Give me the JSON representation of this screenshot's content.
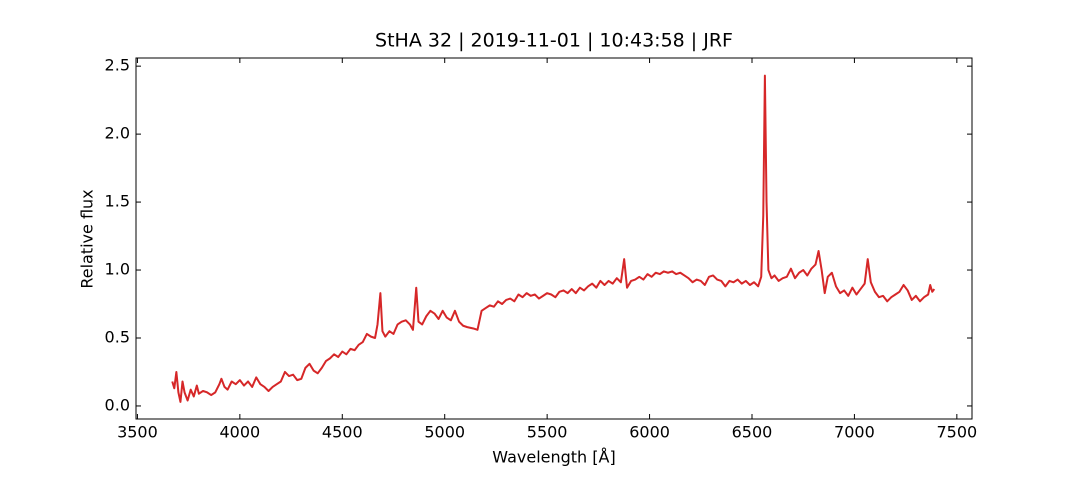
{
  "chart_data": {
    "type": "line",
    "title": "StHA 32 | 2019-11-01 | 10:43:58 | JRF",
    "x_label": "Wavelength [Å]",
    "y_label": "Relative flux",
    "xlim": [
      3493,
      7574
    ],
    "ylim": [
      -0.096,
      2.56
    ],
    "xticks": [
      3500,
      4000,
      4500,
      5000,
      5500,
      6000,
      6500,
      7000,
      7500
    ],
    "yticks": [
      {
        "value": 0,
        "label": "0.0"
      },
      0.5,
      {
        "value": 1,
        "label": "1.0"
      },
      1.5,
      {
        "value": 2,
        "label": "2.0"
      },
      2.5
    ],
    "x": [
      3670,
      3680,
      3690,
      3700,
      3710,
      3720,
      3730,
      3745,
      3760,
      3775,
      3790,
      3800,
      3820,
      3840,
      3860,
      3880,
      3900,
      3910,
      3925,
      3940,
      3960,
      3980,
      4000,
      4020,
      4040,
      4060,
      4080,
      4100,
      4120,
      4140,
      4160,
      4180,
      4200,
      4220,
      4240,
      4260,
      4280,
      4300,
      4320,
      4340,
      4360,
      4380,
      4400,
      4420,
      4440,
      4460,
      4480,
      4500,
      4520,
      4540,
      4560,
      4580,
      4600,
      4620,
      4640,
      4660,
      4672,
      4686,
      4696,
      4710,
      4730,
      4750,
      4770,
      4790,
      4810,
      4830,
      4845,
      4861,
      4872,
      4890,
      4910,
      4930,
      4950,
      4970,
      4990,
      5010,
      5030,
      5050,
      5070,
      5090,
      5110,
      5140,
      5160,
      5180,
      5200,
      5220,
      5240,
      5260,
      5280,
      5300,
      5320,
      5340,
      5360,
      5380,
      5400,
      5420,
      5440,
      5460,
      5480,
      5500,
      5520,
      5540,
      5560,
      5580,
      5600,
      5620,
      5640,
      5660,
      5680,
      5700,
      5720,
      5740,
      5760,
      5780,
      5800,
      5820,
      5840,
      5860,
      5876,
      5890,
      5910,
      5930,
      5950,
      5970,
      5990,
      6010,
      6030,
      6050,
      6070,
      6090,
      6110,
      6130,
      6150,
      6170,
      6190,
      6210,
      6230,
      6250,
      6270,
      6290,
      6310,
      6330,
      6350,
      6370,
      6390,
      6410,
      6430,
      6450,
      6470,
      6490,
      6510,
      6530,
      6545,
      6555,
      6563,
      6571,
      6580,
      6595,
      6610,
      6630,
      6650,
      6670,
      6690,
      6710,
      6730,
      6750,
      6770,
      6790,
      6810,
      6825,
      6840,
      6855,
      6870,
      6890,
      6910,
      6930,
      6950,
      6970,
      6990,
      7010,
      7030,
      7050,
      7065,
      7080,
      7100,
      7120,
      7140,
      7160,
      7180,
      7200,
      7220,
      7240,
      7260,
      7280,
      7300,
      7320,
      7340,
      7360,
      7370,
      7380,
      7390
    ],
    "series": [
      {
        "color": "#d62728",
        "values": [
          0.18,
          0.13,
          0.25,
          0.1,
          0.03,
          0.18,
          0.1,
          0.04,
          0.12,
          0.07,
          0.15,
          0.09,
          0.11,
          0.1,
          0.08,
          0.1,
          0.16,
          0.2,
          0.14,
          0.12,
          0.18,
          0.16,
          0.19,
          0.15,
          0.18,
          0.14,
          0.21,
          0.16,
          0.14,
          0.11,
          0.14,
          0.16,
          0.18,
          0.25,
          0.22,
          0.23,
          0.19,
          0.2,
          0.28,
          0.31,
          0.26,
          0.24,
          0.28,
          0.33,
          0.35,
          0.38,
          0.36,
          0.4,
          0.38,
          0.42,
          0.41,
          0.45,
          0.47,
          0.53,
          0.51,
          0.5,
          0.6,
          0.83,
          0.55,
          0.51,
          0.55,
          0.53,
          0.6,
          0.62,
          0.63,
          0.6,
          0.56,
          0.87,
          0.62,
          0.6,
          0.66,
          0.7,
          0.68,
          0.64,
          0.7,
          0.65,
          0.63,
          0.7,
          0.62,
          0.59,
          0.58,
          0.57,
          0.56,
          0.7,
          0.72,
          0.74,
          0.73,
          0.77,
          0.75,
          0.78,
          0.79,
          0.77,
          0.82,
          0.8,
          0.83,
          0.81,
          0.82,
          0.79,
          0.81,
          0.83,
          0.82,
          0.8,
          0.84,
          0.85,
          0.83,
          0.86,
          0.83,
          0.87,
          0.85,
          0.88,
          0.9,
          0.87,
          0.92,
          0.89,
          0.92,
          0.9,
          0.94,
          0.91,
          1.08,
          0.87,
          0.92,
          0.93,
          0.95,
          0.93,
          0.97,
          0.95,
          0.98,
          0.97,
          0.99,
          0.98,
          0.99,
          0.97,
          0.98,
          0.96,
          0.94,
          0.91,
          0.93,
          0.92,
          0.89,
          0.95,
          0.96,
          0.93,
          0.92,
          0.88,
          0.92,
          0.91,
          0.93,
          0.9,
          0.92,
          0.89,
          0.91,
          0.88,
          0.95,
          1.4,
          2.43,
          1.5,
          1.0,
          0.94,
          0.96,
          0.92,
          0.94,
          0.95,
          1.01,
          0.94,
          0.98,
          1.0,
          0.96,
          1.01,
          1.04,
          1.14,
          1.0,
          0.83,
          0.95,
          0.98,
          0.88,
          0.83,
          0.85,
          0.81,
          0.87,
          0.82,
          0.86,
          0.9,
          1.08,
          0.91,
          0.84,
          0.8,
          0.81,
          0.77,
          0.8,
          0.82,
          0.84,
          0.89,
          0.85,
          0.78,
          0.81,
          0.77,
          0.8,
          0.82,
          0.89,
          0.84,
          0.86
        ]
      }
    ]
  }
}
